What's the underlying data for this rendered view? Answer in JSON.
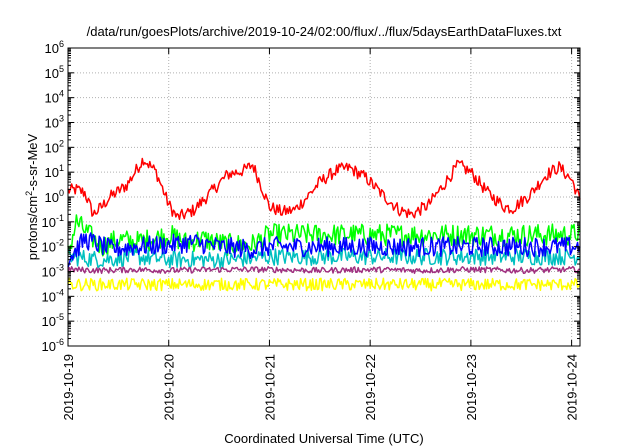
{
  "chart_data": {
    "type": "line",
    "title": "/data/run/goesPlots/archive/2019-10-24/02:00/flux/../flux/5daysEarthDataFluxes.txt",
    "xlabel": "Coordinated Universal Time (UTC)",
    "ylabel_main": "protons/cm",
    "ylabel_sup": "2",
    "ylabel_rest": "-s-sr-MeV",
    "yscale": "log",
    "ylim": [
      1e-06,
      1000000.0
    ],
    "y_ticks": [
      {
        "base": "10",
        "exp": "-6"
      },
      {
        "base": "10",
        "exp": "-5"
      },
      {
        "base": "10",
        "exp": "-4"
      },
      {
        "base": "10",
        "exp": "-3"
      },
      {
        "base": "10",
        "exp": "-2"
      },
      {
        "base": "10",
        "exp": "-1"
      },
      {
        "base": "10",
        "exp": "0"
      },
      {
        "base": "10",
        "exp": "1"
      },
      {
        "base": "10",
        "exp": "2"
      },
      {
        "base": "10",
        "exp": "3"
      },
      {
        "base": "10",
        "exp": "4"
      },
      {
        "base": "10",
        "exp": "5"
      },
      {
        "base": "10",
        "exp": "6"
      }
    ],
    "xlim": [
      "2019-10-19T00:00",
      "2019-10-24T02:00"
    ],
    "x_ticks": [
      "2019-10-19",
      "2019-10-20",
      "2019-10-21",
      "2019-10-22",
      "2019-10-23",
      "2019-10-24"
    ],
    "grid": true,
    "legend": "none",
    "series": [
      {
        "color": "#ff0000",
        "points": [
          [
            "2019-10-19T00:00",
            1.8
          ],
          [
            "2019-10-19T02:00",
            2.0
          ],
          [
            "2019-10-19T04:00",
            1.5
          ],
          [
            "2019-10-19T06:00",
            0.2
          ],
          [
            "2019-10-19T08:00",
            0.4
          ],
          [
            "2019-10-19T10:00",
            1.0
          ],
          [
            "2019-10-19T14:00",
            3.0
          ],
          [
            "2019-10-19T18:00",
            35
          ],
          [
            "2019-10-19T21:00",
            10
          ],
          [
            "2019-10-20T00:00",
            0.5
          ],
          [
            "2019-10-20T02:00",
            0.15
          ],
          [
            "2019-10-20T04:00",
            0.2
          ],
          [
            "2019-10-20T06:00",
            0.3
          ],
          [
            "2019-10-20T10:00",
            1.5
          ],
          [
            "2019-10-20T14:00",
            8
          ],
          [
            "2019-10-20T18:00",
            12
          ],
          [
            "2019-10-20T20:00",
            20
          ],
          [
            "2019-10-20T22:00",
            3
          ],
          [
            "2019-10-21T00:00",
            0.4
          ],
          [
            "2019-10-21T03:00",
            0.25
          ],
          [
            "2019-10-21T06:00",
            0.3
          ],
          [
            "2019-10-21T09:00",
            1.0
          ],
          [
            "2019-10-21T12:00",
            4
          ],
          [
            "2019-10-21T16:00",
            12
          ],
          [
            "2019-10-21T19:00",
            15
          ],
          [
            "2019-10-21T23:00",
            6
          ],
          [
            "2019-10-22T03:00",
            1.2
          ],
          [
            "2019-10-22T07:00",
            0.3
          ],
          [
            "2019-10-22T10:00",
            0.2
          ],
          [
            "2019-10-22T14:00",
            0.5
          ],
          [
            "2019-10-22T18:00",
            4
          ],
          [
            "2019-10-22T21:00",
            20
          ],
          [
            "2019-10-23T00:00",
            10
          ],
          [
            "2019-10-23T04:00",
            1.5
          ],
          [
            "2019-10-23T08:00",
            0.4
          ],
          [
            "2019-10-23T10:00",
            0.35
          ],
          [
            "2019-10-23T14:00",
            1.2
          ],
          [
            "2019-10-23T18:00",
            8
          ],
          [
            "2019-10-23T21:00",
            16
          ],
          [
            "2019-10-24T00:00",
            5
          ],
          [
            "2019-10-24T02:00",
            0.8
          ]
        ],
        "noise": 0.25
      },
      {
        "color": "#00ff00",
        "points": [
          [
            "2019-10-19T00:00",
            0.005
          ],
          [
            "2019-10-19T02:00",
            0.1
          ],
          [
            "2019-10-19T05:00",
            0.03
          ],
          [
            "2019-10-19T08:00",
            0.01
          ],
          [
            "2019-10-19T12:00",
            0.02
          ],
          [
            "2019-10-19T16:00",
            0.015
          ],
          [
            "2019-10-19T20:00",
            0.02
          ],
          [
            "2019-10-20T00:00",
            0.03
          ],
          [
            "2019-10-20T04:00",
            0.015
          ],
          [
            "2019-10-20T08:00",
            0.02
          ],
          [
            "2019-10-20T14:00",
            0.012
          ],
          [
            "2019-10-20T20:00",
            0.012
          ],
          [
            "2019-10-21T00:00",
            0.03
          ],
          [
            "2019-10-21T06:00",
            0.03
          ],
          [
            "2019-10-21T12:00",
            0.03
          ],
          [
            "2019-10-21T18:00",
            0.03
          ],
          [
            "2019-10-22T00:00",
            0.03
          ],
          [
            "2019-10-22T06:00",
            0.03
          ],
          [
            "2019-10-22T12:00",
            0.03
          ],
          [
            "2019-10-22T18:00",
            0.03
          ],
          [
            "2019-10-23T00:00",
            0.03
          ],
          [
            "2019-10-23T06:00",
            0.03
          ],
          [
            "2019-10-23T12:00",
            0.03
          ],
          [
            "2019-10-23T18:00",
            0.03
          ],
          [
            "2019-10-24T00:00",
            0.03
          ],
          [
            "2019-10-24T02:00",
            0.04
          ]
        ],
        "noise": 0.45
      },
      {
        "color": "#00c0c0",
        "points": [
          [
            "2019-10-19T00:00",
            0.004
          ],
          [
            "2019-10-19T08:00",
            0.003
          ],
          [
            "2019-10-19T16:00",
            0.004
          ],
          [
            "2019-10-20T00:00",
            0.003
          ],
          [
            "2019-10-20T08:00",
            0.003
          ],
          [
            "2019-10-20T16:00",
            0.003
          ],
          [
            "2019-10-21T00:00",
            0.004
          ],
          [
            "2019-10-21T12:00",
            0.004
          ],
          [
            "2019-10-22T00:00",
            0.004
          ],
          [
            "2019-10-22T12:00",
            0.004
          ],
          [
            "2019-10-23T00:00",
            0.004
          ],
          [
            "2019-10-23T12:00",
            0.004
          ],
          [
            "2019-10-24T00:00",
            0.004
          ],
          [
            "2019-10-24T02:00",
            0.004
          ]
        ],
        "noise": 0.35
      },
      {
        "color": "#0000ff",
        "points": [
          [
            "2019-10-19T00:00",
            0.003
          ],
          [
            "2019-10-19T04:00",
            0.02
          ],
          [
            "2019-10-19T10:00",
            0.008
          ],
          [
            "2019-10-19T16:00",
            0.01
          ],
          [
            "2019-10-20T00:00",
            0.012
          ],
          [
            "2019-10-20T06:00",
            0.015
          ],
          [
            "2019-10-20T12:00",
            0.01
          ],
          [
            "2019-10-20T20:00",
            0.008
          ],
          [
            "2019-10-21T00:00",
            0.01
          ],
          [
            "2019-10-21T12:00",
            0.01
          ],
          [
            "2019-10-22T00:00",
            0.01
          ],
          [
            "2019-10-22T12:00",
            0.01
          ],
          [
            "2019-10-23T00:00",
            0.01
          ],
          [
            "2019-10-23T12:00",
            0.01
          ],
          [
            "2019-10-24T00:00",
            0.01
          ],
          [
            "2019-10-24T02:00",
            0.01
          ]
        ],
        "noise": 0.4
      },
      {
        "color": "#a03080",
        "points": [
          [
            "2019-10-19T00:00",
            0.0012
          ],
          [
            "2019-10-19T08:00",
            0.0011
          ],
          [
            "2019-10-19T16:00",
            0.0012
          ],
          [
            "2019-10-20T00:00",
            0.0011
          ],
          [
            "2019-10-20T12:00",
            0.0012
          ],
          [
            "2019-10-21T00:00",
            0.0012
          ],
          [
            "2019-10-21T12:00",
            0.0011
          ],
          [
            "2019-10-22T00:00",
            0.0012
          ],
          [
            "2019-10-22T12:00",
            0.0011
          ],
          [
            "2019-10-23T00:00",
            0.0012
          ],
          [
            "2019-10-23T12:00",
            0.0011
          ],
          [
            "2019-10-24T00:00",
            0.0012
          ],
          [
            "2019-10-24T02:00",
            0.0012
          ]
        ],
        "noise": 0.12
      },
      {
        "color": "#ffff00",
        "points": [
          [
            "2019-10-19T00:00",
            0.0003
          ],
          [
            "2019-10-19T12:00",
            0.0003
          ],
          [
            "2019-10-20T00:00",
            0.0003
          ],
          [
            "2019-10-20T12:00",
            0.0003
          ],
          [
            "2019-10-21T00:00",
            0.0003
          ],
          [
            "2019-10-21T12:00",
            0.0003
          ],
          [
            "2019-10-22T00:00",
            0.0003
          ],
          [
            "2019-10-22T12:00",
            0.0003
          ],
          [
            "2019-10-23T00:00",
            0.0003
          ],
          [
            "2019-10-23T12:00",
            0.0003
          ],
          [
            "2019-10-24T00:00",
            0.0003
          ],
          [
            "2019-10-24T02:00",
            0.0003
          ]
        ],
        "noise": 0.25
      }
    ]
  }
}
